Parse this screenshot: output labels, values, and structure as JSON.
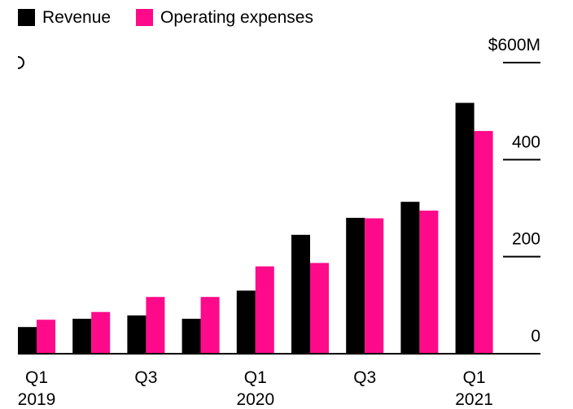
{
  "colors": {
    "revenue": "#000000",
    "operating_expenses": "#ff0a8a",
    "axis": "#000000",
    "text": "#000000"
  },
  "chart_data": {
    "type": "bar",
    "title": "",
    "legend": {
      "position": "top-left",
      "items": [
        {
          "name": "Revenue",
          "color": "#000000"
        },
        {
          "name": "Operating expenses",
          "color": "#ff0a8a"
        }
      ]
    },
    "categories": [
      "Q1 2019",
      "Q2 2019",
      "Q3 2019",
      "Q4 2019",
      "Q1 2020",
      "Q2 2020",
      "Q3 2020",
      "Q4 2020",
      "Q1 2021"
    ],
    "x_tick_labels": [
      {
        "index": 0,
        "line1": "Q1",
        "line2": "2019"
      },
      {
        "index": 2,
        "line1": "Q3",
        "line2": ""
      },
      {
        "index": 4,
        "line1": "Q1",
        "line2": "2020"
      },
      {
        "index": 6,
        "line1": "Q3",
        "line2": ""
      },
      {
        "index": 8,
        "line1": "Q1",
        "line2": "2021"
      }
    ],
    "series": [
      {
        "name": "Revenue",
        "color": "#000000",
        "values": [
          55,
          72,
          79,
          72,
          130,
          245,
          280,
          313,
          517
        ]
      },
      {
        "name": "Operating expenses",
        "color": "#ff0a8a",
        "values": [
          70,
          86,
          117,
          117,
          180,
          187,
          279,
          295,
          459
        ]
      }
    ],
    "y_axis": {
      "position": "right",
      "ylim": [
        0,
        600
      ],
      "ticks": [
        0,
        200,
        400,
        600
      ],
      "tick_labels": [
        "0",
        "200",
        "400",
        "$600M"
      ]
    },
    "xlabel": "",
    "ylabel": "",
    "grid": false
  }
}
